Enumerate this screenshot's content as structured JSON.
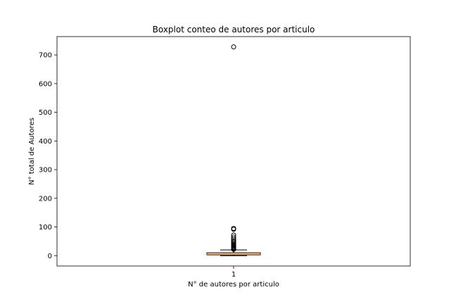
{
  "chart_data": {
    "type": "boxplot",
    "title": "Boxplot conteo de autores por articulo",
    "xlabel": "N° de autores por articulo",
    "ylabel": "N° total de Autores",
    "categories": [
      "1"
    ],
    "ylim": [
      -36,
      764
    ],
    "yticks": [
      0,
      100,
      200,
      300,
      400,
      500,
      600,
      700
    ],
    "grid": false,
    "box": {
      "whisker_low": 0,
      "q1": 3,
      "median": 5,
      "q3": 10,
      "whisker_high": 20,
      "outliers": [
        22,
        24,
        26,
        28,
        30,
        33,
        36,
        40,
        44,
        48,
        52,
        58,
        65,
        72,
        92,
        95,
        728
      ]
    },
    "colors": {
      "box": "#000000",
      "median": "#ff7f0e",
      "outlier": "#000000"
    }
  }
}
